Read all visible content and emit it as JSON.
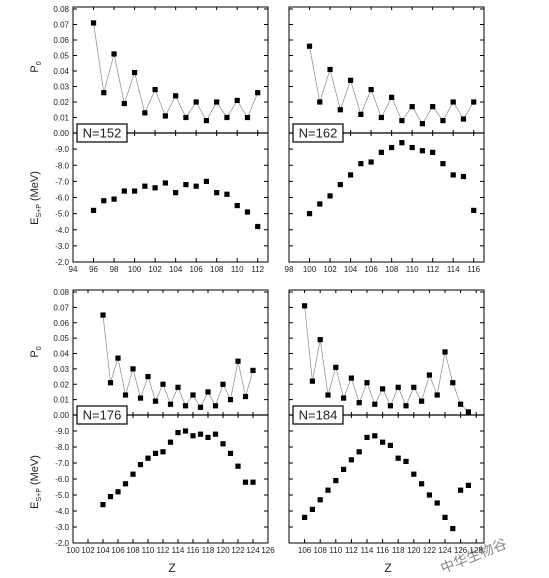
{
  "figure": {
    "x_label": "Z",
    "y_label_p0_main": "P",
    "y_label_p0_sub": "0",
    "y_label_e_main": "E",
    "y_label_e_sub": "S+P",
    "y_label_e_unit": "(MeV)",
    "watermark": "中华生物谷"
  },
  "chart_data": [
    {
      "id": "tl",
      "type": "line",
      "panel_label": "N=152",
      "x_ticks": [
        "94",
        "96",
        "98",
        "100",
        "102",
        "104",
        "106",
        "108",
        "110",
        "112"
      ],
      "xlim": [
        94,
        113
      ],
      "top": {
        "ylabel": "P0",
        "ylim": [
          0,
          0.08
        ],
        "y_ticks": [
          "0.00",
          "0.01",
          "0.02",
          "0.03",
          "0.04",
          "0.05",
          "0.06",
          "0.07",
          "0.08"
        ],
        "x": [
          96,
          97,
          98,
          99,
          100,
          101,
          102,
          103,
          104,
          105,
          106,
          107,
          108,
          109,
          110,
          111,
          112
        ],
        "y": [
          0.071,
          0.026,
          0.051,
          0.019,
          0.039,
          0.013,
          0.028,
          0.011,
          0.024,
          0.01,
          0.02,
          0.008,
          0.02,
          0.01,
          0.021,
          0.01,
          0.026
        ]
      },
      "bottom": {
        "ylabel": "E_S+P (MeV)",
        "ylim": [
          -2.0,
          -10.0
        ],
        "y_ticks": [
          "-2.0",
          "-3.0",
          "-4.0",
          "-5.0",
          "-6.0",
          "-7.0",
          "-8.0",
          "-9.0"
        ],
        "x": [
          96,
          97,
          98,
          99,
          100,
          101,
          102,
          103,
          104,
          105,
          106,
          107,
          108,
          109,
          110,
          111,
          112
        ],
        "y": [
          -5.2,
          -5.8,
          -5.9,
          -6.4,
          -6.4,
          -6.7,
          -6.6,
          -6.9,
          -6.3,
          -6.8,
          -6.7,
          -7.0,
          -6.3,
          -6.2,
          -5.5,
          -5.1,
          -4.2
        ]
      }
    },
    {
      "id": "tr",
      "type": "line",
      "panel_label": "N=162",
      "x_ticks": [
        "98",
        "100",
        "102",
        "104",
        "106",
        "108",
        "110",
        "112",
        "114",
        "116"
      ],
      "xlim": [
        98,
        117
      ],
      "top": {
        "ylabel": "P0",
        "ylim": [
          0,
          0.08
        ],
        "x": [
          100,
          101,
          102,
          103,
          104,
          105,
          106,
          107,
          108,
          109,
          110,
          111,
          112,
          113,
          114,
          115,
          116
        ],
        "y": [
          0.056,
          0.02,
          0.041,
          0.015,
          0.034,
          0.012,
          0.028,
          0.01,
          0.023,
          0.008,
          0.017,
          0.006,
          0.017,
          0.008,
          0.02,
          0.009,
          0.02
        ]
      },
      "bottom": {
        "ylabel": "E_S+P (MeV)",
        "ylim": [
          -2.0,
          -10.0
        ],
        "x": [
          100,
          101,
          102,
          103,
          104,
          105,
          106,
          107,
          108,
          109,
          110,
          111,
          112,
          113,
          114,
          115,
          116
        ],
        "y": [
          -5.0,
          -5.6,
          -6.1,
          -6.8,
          -7.4,
          -8.1,
          -8.2,
          -8.8,
          -9.1,
          -9.4,
          -9.1,
          -8.9,
          -8.8,
          -8.1,
          -7.4,
          -7.3,
          -5.2
        ]
      }
    },
    {
      "id": "bl",
      "type": "line",
      "panel_label": "N=176",
      "x_ticks": [
        "100",
        "102",
        "104",
        "106",
        "108",
        "110",
        "112",
        "114",
        "116",
        "118",
        "120",
        "122",
        "124",
        "126"
      ],
      "xlim": [
        100,
        126
      ],
      "top": {
        "ylabel": "P0",
        "ylim": [
          0,
          0.08
        ],
        "y_ticks": [
          "0.00",
          "0.01",
          "0.02",
          "0.03",
          "0.04",
          "0.05",
          "0.06",
          "0.07",
          "0.08"
        ],
        "x": [
          104,
          105,
          106,
          107,
          108,
          109,
          110,
          111,
          112,
          113,
          114,
          115,
          116,
          117,
          118,
          119,
          120,
          121,
          122,
          123,
          124
        ],
        "y": [
          0.065,
          0.021,
          0.037,
          0.013,
          0.03,
          0.011,
          0.025,
          0.009,
          0.02,
          0.007,
          0.018,
          0.006,
          0.013,
          0.005,
          0.015,
          0.006,
          0.02,
          0.01,
          0.035,
          0.012,
          0.029
        ]
      },
      "bottom": {
        "ylabel": "E_S+P (MeV)",
        "ylim": [
          -2.0,
          -10.0
        ],
        "y_ticks": [
          "-2.0",
          "-3.0",
          "-4.0",
          "-5.0",
          "-6.0",
          "-7.0",
          "-8.0",
          "-9.0"
        ],
        "x": [
          104,
          105,
          106,
          107,
          108,
          109,
          110,
          111,
          112,
          113,
          114,
          115,
          116,
          117,
          118,
          119,
          120,
          121,
          122,
          123,
          124
        ],
        "y": [
          -4.4,
          -4.9,
          -5.2,
          -5.7,
          -6.3,
          -6.9,
          -7.3,
          -7.6,
          -7.7,
          -8.3,
          -8.9,
          -9.0,
          -8.7,
          -8.8,
          -8.6,
          -8.8,
          -8.2,
          -7.6,
          -6.8,
          -5.8,
          -5.8
        ]
      }
    },
    {
      "id": "br",
      "type": "line",
      "panel_label": "N=184",
      "x_ticks": [
        "106",
        "108",
        "110",
        "112",
        "114",
        "116",
        "118",
        "120",
        "122",
        "124",
        "126",
        "128"
      ],
      "xlim": [
        104,
        129
      ],
      "top": {
        "ylabel": "P0",
        "ylim": [
          0,
          0.08
        ],
        "x": [
          106,
          107,
          108,
          109,
          110,
          111,
          112,
          113,
          114,
          115,
          116,
          117,
          118,
          119,
          120,
          121,
          122,
          123,
          124,
          125,
          126,
          127
        ],
        "y": [
          0.071,
          0.022,
          0.049,
          0.013,
          0.031,
          0.011,
          0.024,
          0.008,
          0.021,
          0.007,
          0.017,
          0.006,
          0.018,
          0.006,
          0.018,
          0.009,
          0.026,
          0.013,
          0.041,
          0.021,
          0.007,
          0.002
        ]
      },
      "bottom": {
        "ylabel": "E_S+P (MeV)",
        "ylim": [
          -2.0,
          -10.0
        ],
        "x": [
          106,
          107,
          108,
          109,
          110,
          111,
          112,
          113,
          114,
          115,
          116,
          117,
          118,
          119,
          120,
          121,
          122,
          123,
          124,
          125,
          126,
          127
        ],
        "y": [
          -3.6,
          -4.1,
          -4.7,
          -5.3,
          -5.9,
          -6.6,
          -7.2,
          -7.7,
          -8.6,
          -8.7,
          -8.3,
          -8.1,
          -7.3,
          -7.1,
          -6.3,
          -5.7,
          -5.0,
          -4.5,
          -3.6,
          -2.9,
          -5.3,
          -5.6
        ]
      }
    }
  ]
}
